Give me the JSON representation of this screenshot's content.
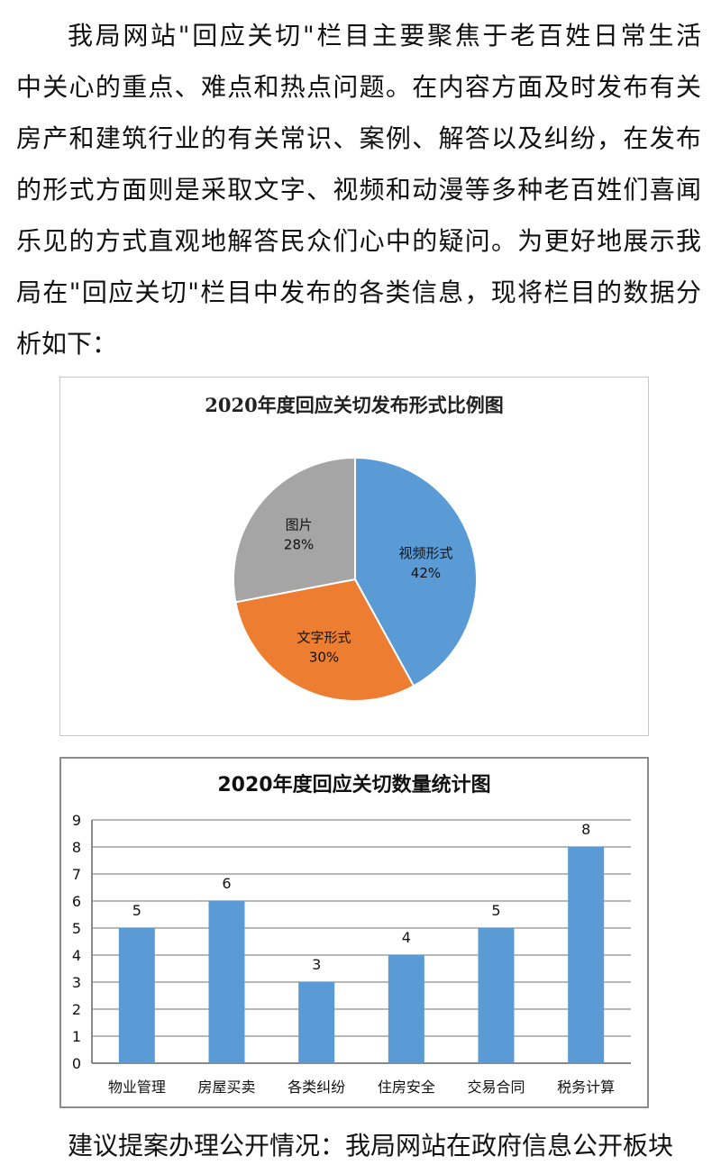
{
  "paragraph_lines": [
    "我局网站\"回应关切\"栏目主要聚焦于老百姓日常生活",
    "中关心的重点、难点和热点问题。在内容方面及时发布有关",
    "房产和建筑行业的有关常识、案例、解答以及纠纷，在发布",
    "的形式方面则是采取文字、视频和动漫等多种老百姓们喜闻",
    "乐见的方式直观地解答民众们心中的疑问。为更好地展示我",
    "局在\"回应关切\"栏目中发布的各类信息，现将栏目的数据分",
    "析如下："
  ],
  "footer_line": "建议提案办理公开情况：我局网站在政府信息公开板块",
  "chart_data": [
    {
      "type": "pie",
      "title": "2020年度回应关切发布形式比例图",
      "slices": [
        {
          "label": "视频形式",
          "value": 42,
          "display": "42%",
          "color": "#5B9BD5"
        },
        {
          "label": "文字形式",
          "value": 30,
          "display": "30%",
          "color": "#ED7D31"
        },
        {
          "label": "图片",
          "value": 28,
          "display": "28%",
          "color": "#A5A5A5"
        }
      ]
    },
    {
      "type": "bar",
      "title": "2020年度回应关切数量统计图",
      "categories": [
        "物业管理",
        "房屋买卖",
        "各类纠纷",
        "住房安全",
        "交易合同",
        "税务计算"
      ],
      "values": [
        5,
        6,
        3,
        4,
        5,
        8
      ],
      "ylim": [
        0,
        9
      ],
      "yticks": [
        "0",
        "1",
        "2",
        "3",
        "4",
        "5",
        "6",
        "7",
        "8",
        "9"
      ],
      "grid": true,
      "color": "#5B9BD5",
      "data_labels": true
    }
  ]
}
